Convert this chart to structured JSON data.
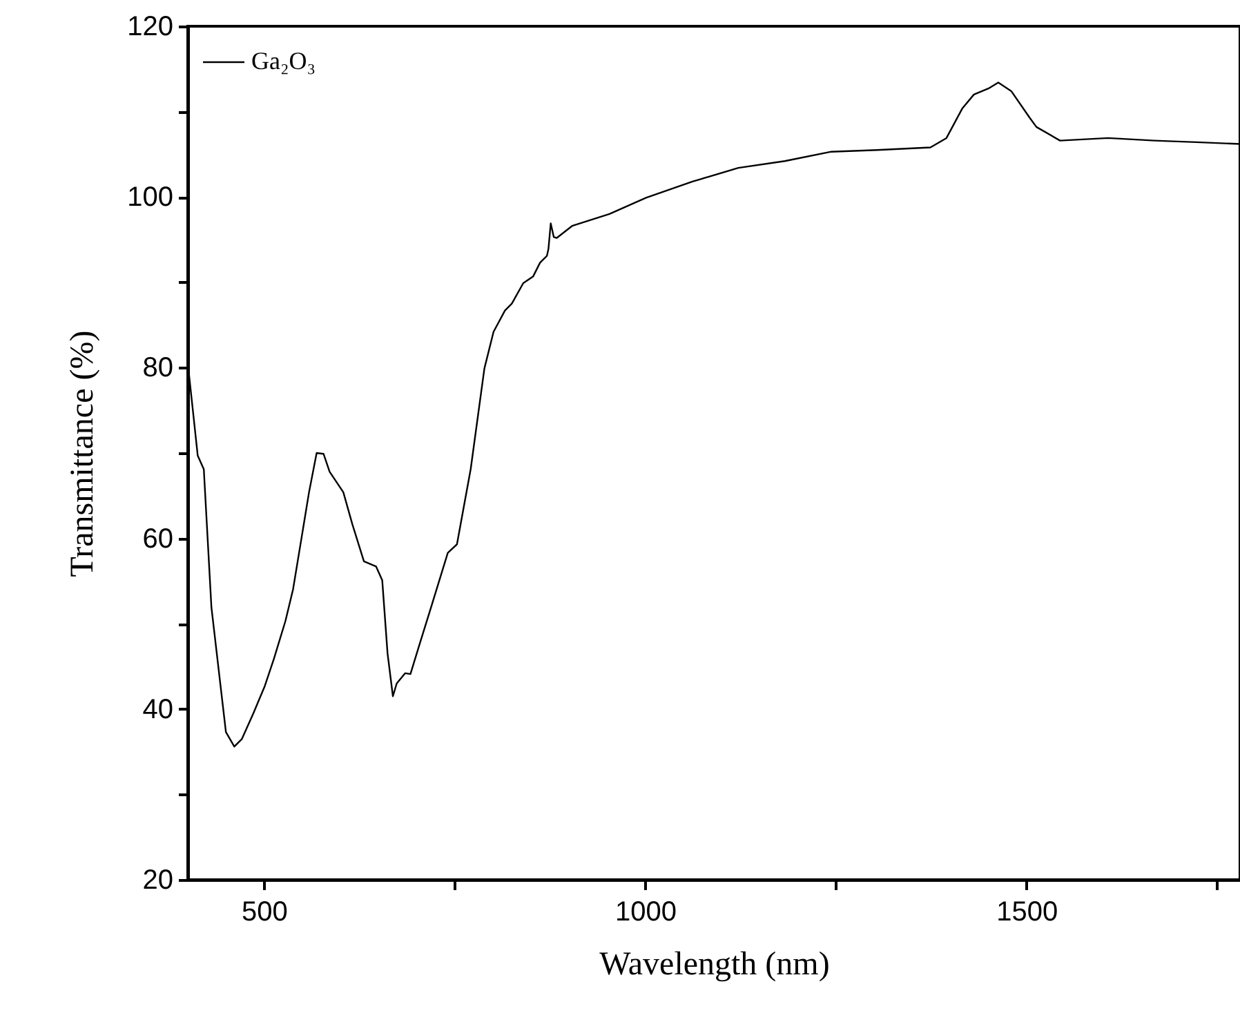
{
  "chart_data": {
    "type": "line",
    "xlabel": "Wavelength (nm)",
    "ylabel": "Transmittance (%)",
    "xlim": [
      400,
      1780
    ],
    "ylim": [
      20,
      120
    ],
    "xticks": [
      500,
      {
        "value": 750,
        "label": null
      },
      1000,
      {
        "value": 1250,
        "label": null
      },
      1500,
      {
        "value": 1750,
        "label": null
      }
    ],
    "yticks": [
      20,
      {
        "value": 30,
        "label": null
      },
      40,
      {
        "value": 50,
        "label": null
      },
      60,
      {
        "value": 70,
        "label": null
      },
      80,
      {
        "value": 90,
        "label": null
      },
      100,
      {
        "value": 110,
        "label": null
      },
      120
    ],
    "grid": false,
    "legend": "top left",
    "marker": "none",
    "line_style": "solid",
    "series": [
      {
        "name": "Ga₂O₃",
        "color": "#000000",
        "x": [
          401,
          413,
          421,
          431,
          450,
          461,
          471,
          486,
          501,
          513,
          528,
          538,
          550,
          559,
          569,
          578,
          586,
          604,
          616,
          631,
          647,
          655,
          662,
          669,
          674,
          685,
          692,
          704,
          719,
          741,
          753,
          771,
          789,
          801,
          816,
          825,
          840,
          853,
          862,
          871,
          873,
          876,
          880,
          884,
          904,
          953,
          1001,
          1062,
          1122,
          1183,
          1244,
          1304,
          1374,
          1395,
          1416,
          1431,
          1450,
          1463,
          1480,
          1504,
          1513,
          1544,
          1607,
          1668,
          1728,
          1780
        ],
        "values": [
          79.7,
          69.7,
          68.1,
          51.9,
          37.3,
          35.6,
          36.5,
          39.5,
          42.7,
          45.9,
          50.3,
          54.0,
          60.5,
          65.4,
          70.0,
          69.9,
          67.8,
          65.4,
          61.6,
          57.3,
          56.7,
          55.1,
          46.5,
          41.5,
          43.0,
          44.2,
          44.1,
          47.6,
          51.9,
          58.3,
          59.3,
          68.1,
          79.9,
          84.2,
          86.7,
          87.5,
          89.9,
          90.7,
          92.3,
          93.1,
          93.9,
          96.9,
          95.3,
          95.2,
          96.6,
          98.0,
          99.9,
          101.8,
          103.4,
          104.2,
          105.3,
          105.5,
          105.8,
          106.9,
          110.4,
          112.0,
          112.7,
          113.4,
          112.4,
          109.3,
          108.2,
          106.6,
          106.9,
          106.6,
          106.4,
          106.2
        ]
      }
    ]
  }
}
